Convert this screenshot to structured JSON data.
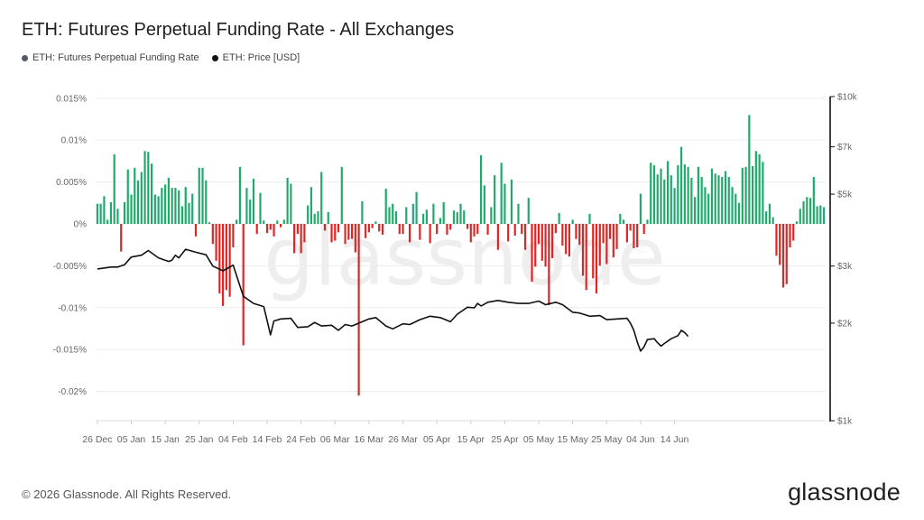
{
  "title": "ETH: Futures Perpetual Funding Rate - All Exchanges",
  "legend": [
    {
      "label": "ETH: Futures Perpetual Funding Rate",
      "color": "#555b66"
    },
    {
      "label": "ETH: Price [USD]",
      "color": "#111111"
    }
  ],
  "footer": {
    "copyright": "© 2026 Glassnode. All Rights Reserved.",
    "logo": "glassnode",
    "watermark": "glassnode"
  },
  "colors": {
    "positive": "#1fa96b",
    "negative": "#e02424",
    "price": "#111111",
    "grid": "#ececec"
  },
  "chart_data": {
    "type": "bar",
    "x_tick_labels": [
      "26 Dec",
      "05 Jan",
      "15 Jan",
      "25 Jan",
      "04 Feb",
      "14 Feb",
      "24 Feb",
      "06 Mar",
      "16 Mar",
      "26 Mar",
      "05 Apr",
      "15 Apr",
      "25 Apr",
      "05 May",
      "15 May",
      "25 May",
      "04 Jun",
      "14 Jun"
    ],
    "y_left_ticks": [
      {
        "value": 0.015,
        "label": "0.015%"
      },
      {
        "value": 0.01,
        "label": "0.01%"
      },
      {
        "value": 0.005,
        "label": "0.005%"
      },
      {
        "value": 0,
        "label": "0%"
      },
      {
        "value": -0.005,
        "label": "-0.005%"
      },
      {
        "value": -0.01,
        "label": "-0.01%"
      },
      {
        "value": -0.015,
        "label": "-0.015%"
      },
      {
        "value": -0.02,
        "label": "-0.02%"
      }
    ],
    "y_right_ticks": [
      {
        "value": 10000,
        "label": "$10k"
      },
      {
        "value": 7000,
        "label": "$7k"
      },
      {
        "value": 5000,
        "label": "$5k"
      },
      {
        "value": 3000,
        "label": "$3k"
      },
      {
        "value": 2000,
        "label": "$2k"
      },
      {
        "value": 1000,
        "label": "$1k"
      }
    ],
    "y_left_range": [
      -0.0235,
      0.0152
    ],
    "y_right_range": [
      1000,
      10000
    ],
    "y_right_scale": "log",
    "start_date": "2025-12-26",
    "grid": true,
    "series": [
      {
        "name": "ETH: Futures Perpetual Funding Rate",
        "type": "bar",
        "unit": "%",
        "values": [
          0.0024,
          0.0024,
          0.0033,
          0.0005,
          0.0026,
          0.0083,
          0.0018,
          -0.0033,
          0.0026,
          0.0065,
          0.0035,
          0.0067,
          0.0052,
          0.0062,
          0.0087,
          0.0086,
          0.0072,
          0.0035,
          0.0033,
          0.0043,
          0.0047,
          0.0055,
          0.0043,
          0.0043,
          0.004,
          0.0021,
          0.0044,
          0.0025,
          0.0036,
          -0.0015,
          0.0067,
          0.0067,
          0.0052,
          0.0002,
          -0.0024,
          -0.0044,
          -0.0083,
          -0.0098,
          -0.0079,
          -0.0087,
          -0.0028,
          0.0005,
          0.0068,
          -0.0145,
          0.0043,
          0.0029,
          0.0054,
          -0.0012,
          0.0037,
          0.0004,
          -0.0011,
          -0.0007,
          -0.0015,
          0.0004,
          -0.0004,
          0.0005,
          0.0055,
          0.0048,
          -0.0035,
          -0.0012,
          -0.0035,
          -0.0022,
          0.0022,
          0.0044,
          0.0012,
          0.0015,
          0.0062,
          -0.0008,
          0.0014,
          -0.0022,
          -0.002,
          -0.001,
          0.0068,
          -0.0024,
          -0.0019,
          -0.0018,
          -0.0034,
          -0.0205,
          0.0027,
          -0.0017,
          -0.001,
          -0.0005,
          0.0003,
          -0.0009,
          -0.0013,
          0.0042,
          0.002,
          0.0024,
          0.0015,
          -0.0012,
          -0.0012,
          0.002,
          -0.0022,
          0.0024,
          0.0038,
          -0.0019,
          0.0012,
          0.0017,
          -0.0023,
          0.0024,
          -0.0012,
          0.0007,
          0.0026,
          -0.0013,
          -0.0007,
          0.0016,
          0.0014,
          0.0024,
          0.0016,
          -0.0006,
          -0.0022,
          -0.0015,
          -0.0012,
          0.0082,
          0.0046,
          -0.0013,
          0.002,
          0.0058,
          -0.0031,
          0.0073,
          0.0048,
          -0.0021,
          0.0053,
          -0.0014,
          0.0024,
          -0.0012,
          -0.0031,
          0.0031,
          -0.0069,
          -0.0051,
          -0.0024,
          -0.0044,
          -0.0051,
          -0.0097,
          -0.0041,
          -0.0011,
          0.0013,
          -0.0026,
          -0.0036,
          -0.0039,
          0.0005,
          -0.0018,
          -0.0025,
          -0.0062,
          -0.0079,
          0.0012,
          -0.0065,
          -0.0083,
          -0.005,
          -0.0023,
          -0.0048,
          -0.0018,
          -0.004,
          -0.003,
          0.0012,
          0.0005,
          -0.0022,
          -0.0008,
          -0.0029,
          -0.0028,
          0.0036,
          -0.0012,
          0.0005,
          0.0073,
          0.007,
          0.0059,
          0.0066,
          0.0053,
          0.0075,
          0.0058,
          0.0043,
          0.007,
          0.0092,
          0.0071,
          0.0068,
          0.0055,
          0.0032,
          0.0068,
          0.0056,
          0.0044,
          0.0036,
          0.0066,
          0.006,
          0.0058,
          0.0056,
          0.0063,
          0.0056,
          0.0044,
          0.0036,
          0.0025,
          0.0067,
          0.0068,
          0.013,
          0.0069,
          0.0087,
          0.0083,
          0.0074,
          0.0015,
          0.0024,
          0.0008,
          -0.0038,
          -0.0049,
          -0.0076,
          -0.0072,
          -0.0028,
          -0.002,
          0.0003,
          0.0018,
          0.0027,
          0.0032,
          0.0031,
          0.0056,
          0.0021,
          0.0022,
          0.002
        ]
      },
      {
        "name": "ETH: Price [USD]",
        "type": "line",
        "unit": "USD",
        "points": [
          {
            "x": "2025-12-26",
            "y": 2940
          },
          {
            "x": "2025-12-30",
            "y": 2980
          },
          {
            "x": "2026-01-01",
            "y": 2980
          },
          {
            "x": "2026-01-03",
            "y": 3030
          },
          {
            "x": "2026-01-05",
            "y": 3200
          },
          {
            "x": "2026-01-08",
            "y": 3240
          },
          {
            "x": "2026-01-10",
            "y": 3350
          },
          {
            "x": "2026-01-13",
            "y": 3180
          },
          {
            "x": "2026-01-16",
            "y": 3100
          },
          {
            "x": "2026-01-17",
            "y": 3130
          },
          {
            "x": "2026-01-18",
            "y": 3240
          },
          {
            "x": "2026-01-19",
            "y": 3180
          },
          {
            "x": "2026-01-21",
            "y": 3380
          },
          {
            "x": "2026-01-24",
            "y": 3310
          },
          {
            "x": "2026-01-27",
            "y": 3250
          },
          {
            "x": "2026-01-29",
            "y": 3000
          },
          {
            "x": "2026-02-01",
            "y": 2900
          },
          {
            "x": "2026-02-04",
            "y": 3020
          },
          {
            "x": "2026-02-07",
            "y": 2420
          },
          {
            "x": "2026-02-10",
            "y": 2300
          },
          {
            "x": "2026-02-13",
            "y": 2250
          },
          {
            "x": "2026-02-15",
            "y": 1840
          },
          {
            "x": "2026-02-16",
            "y": 2030
          },
          {
            "x": "2026-02-18",
            "y": 2060
          },
          {
            "x": "2026-02-21",
            "y": 2070
          },
          {
            "x": "2026-02-23",
            "y": 1940
          },
          {
            "x": "2026-02-26",
            "y": 1950
          },
          {
            "x": "2026-02-28",
            "y": 2010
          },
          {
            "x": "2026-03-02",
            "y": 1960
          },
          {
            "x": "2026-03-05",
            "y": 1970
          },
          {
            "x": "2026-03-07",
            "y": 1900
          },
          {
            "x": "2026-03-09",
            "y": 1980
          },
          {
            "x": "2026-03-11",
            "y": 1960
          },
          {
            "x": "2026-03-14",
            "y": 2020
          },
          {
            "x": "2026-03-16",
            "y": 2060
          },
          {
            "x": "2026-03-18",
            "y": 2080
          },
          {
            "x": "2026-03-21",
            "y": 1960
          },
          {
            "x": "2026-03-23",
            "y": 1920
          },
          {
            "x": "2026-03-26",
            "y": 1990
          },
          {
            "x": "2026-03-28",
            "y": 1980
          },
          {
            "x": "2026-03-31",
            "y": 2050
          },
          {
            "x": "2026-04-03",
            "y": 2100
          },
          {
            "x": "2026-04-06",
            "y": 2080
          },
          {
            "x": "2026-04-09",
            "y": 2020
          },
          {
            "x": "2026-04-11",
            "y": 2130
          },
          {
            "x": "2026-04-14",
            "y": 2240
          },
          {
            "x": "2026-04-16",
            "y": 2230
          },
          {
            "x": "2026-04-17",
            "y": 2300
          },
          {
            "x": "2026-04-18",
            "y": 2260
          },
          {
            "x": "2026-04-20",
            "y": 2320
          },
          {
            "x": "2026-04-23",
            "y": 2350
          },
          {
            "x": "2026-04-26",
            "y": 2320
          },
          {
            "x": "2026-04-29",
            "y": 2300
          },
          {
            "x": "2026-05-02",
            "y": 2300
          },
          {
            "x": "2026-05-05",
            "y": 2340
          },
          {
            "x": "2026-05-07",
            "y": 2280
          },
          {
            "x": "2026-05-10",
            "y": 2320
          },
          {
            "x": "2026-05-12",
            "y": 2280
          },
          {
            "x": "2026-05-15",
            "y": 2160
          },
          {
            "x": "2026-05-17",
            "y": 2150
          },
          {
            "x": "2026-05-20",
            "y": 2100
          },
          {
            "x": "2026-05-23",
            "y": 2110
          },
          {
            "x": "2026-05-25",
            "y": 2050
          },
          {
            "x": "2026-05-28",
            "y": 2060
          },
          {
            "x": "2026-05-31",
            "y": 2070
          },
          {
            "x": "2026-06-01",
            "y": 2000
          },
          {
            "x": "2026-06-02",
            "y": 1900
          },
          {
            "x": "2026-06-03",
            "y": 1750
          },
          {
            "x": "2026-06-04",
            "y": 1640
          },
          {
            "x": "2026-06-05",
            "y": 1690
          },
          {
            "x": "2026-06-06",
            "y": 1780
          },
          {
            "x": "2026-06-08",
            "y": 1790
          },
          {
            "x": "2026-06-09",
            "y": 1740
          },
          {
            "x": "2026-06-10",
            "y": 1700
          },
          {
            "x": "2026-06-11",
            "y": 1730
          },
          {
            "x": "2026-06-13",
            "y": 1790
          },
          {
            "x": "2026-06-15",
            "y": 1830
          },
          {
            "x": "2026-06-16",
            "y": 1900
          },
          {
            "x": "2026-06-17",
            "y": 1870
          },
          {
            "x": "2026-06-18",
            "y": 1820
          }
        ]
      }
    ]
  }
}
